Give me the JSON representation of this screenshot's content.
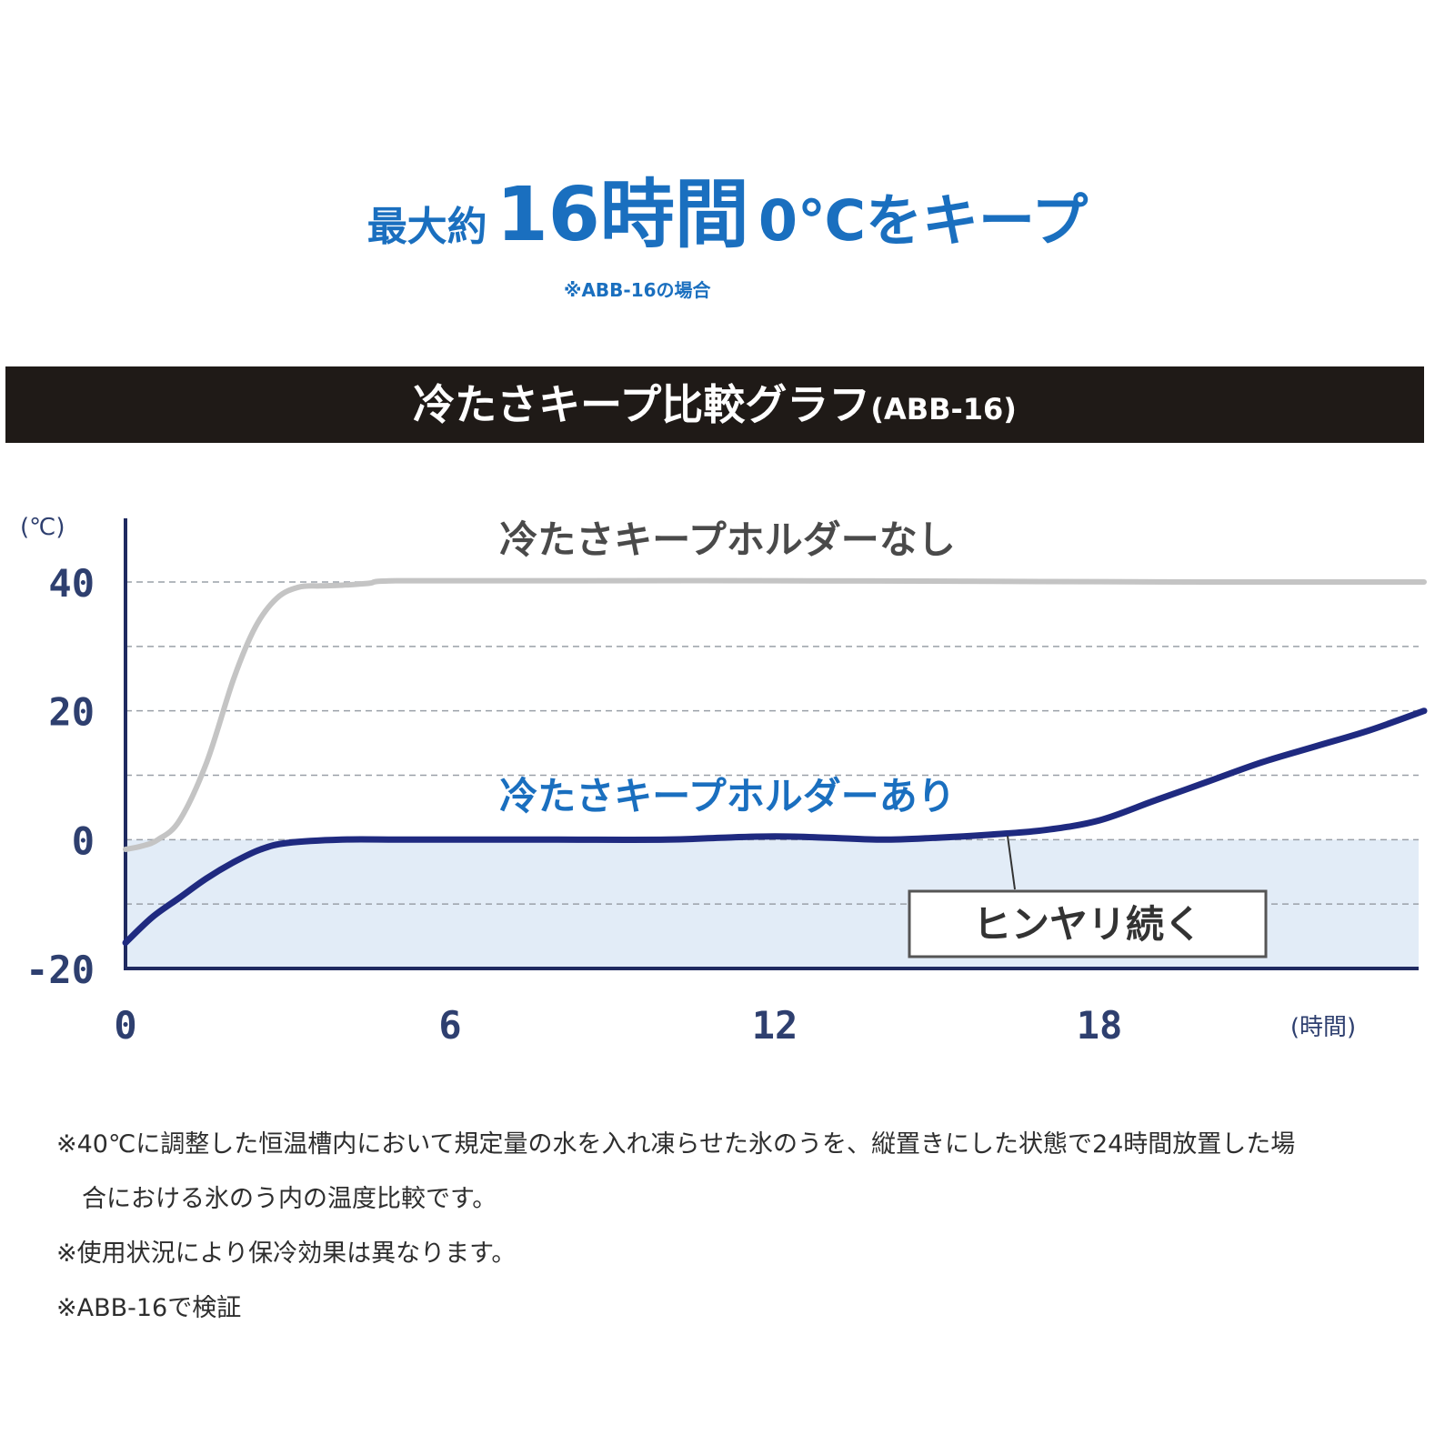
{
  "header": {
    "pre": "最大約",
    "big": "16時間",
    "post": "0℃をキープ",
    "note": "※ABB-16の場合"
  },
  "banner": {
    "main": "冷たさキープ比較グラフ",
    "sub": "(ABB-16)"
  },
  "colors": {
    "accent": "#1a6fbf",
    "banner_bg": "#1f1a17",
    "with_holder": "#1f2a80",
    "without_holder": "#c4c4c4",
    "cold_zone": "#e2ecf7"
  },
  "chart_data": {
    "type": "line",
    "yunit": "(℃)",
    "xunit": "(時間)",
    "xlim": [
      0,
      24
    ],
    "ylim": [
      -20,
      40
    ],
    "xticks": [
      "0",
      "6",
      "12",
      "18"
    ],
    "yticks": [
      "40",
      "20",
      "0",
      "-20"
    ],
    "grid": true,
    "gridlines": [
      40,
      30,
      20,
      10,
      0,
      -10
    ],
    "shaded_region": {
      "from": -20,
      "to": 0,
      "label": "ヒンヤリ続く"
    },
    "series": [
      {
        "name": "冷たさキープホルダーなし",
        "x": [
          0,
          0.3,
          0.6,
          1.0,
          1.5,
          2.0,
          2.4,
          2.8,
          3.2,
          3.6,
          4.0,
          4.5,
          5.0,
          8,
          12,
          16,
          20,
          24
        ],
        "y": [
          -1.5,
          -1,
          0,
          3,
          12,
          25,
          33,
          37.5,
          39.2,
          39.4,
          39.5,
          39.8,
          40.2,
          40.2,
          40.2,
          40.1,
          40.0,
          40.0
        ]
      },
      {
        "name": "冷たさキープホルダーあり",
        "x": [
          0,
          0.5,
          1.0,
          1.5,
          2.0,
          2.5,
          3.0,
          4.0,
          5.0,
          6,
          8,
          10,
          11,
          12,
          13,
          14,
          15,
          16,
          17,
          18,
          19,
          20,
          21,
          22,
          23,
          24
        ],
        "y": [
          -16,
          -12,
          -9,
          -6,
          -3.5,
          -1.5,
          -0.5,
          0,
          0,
          0,
          0,
          0,
          0.3,
          0.5,
          0.3,
          0,
          0.3,
          0.8,
          1.5,
          3,
          6,
          9,
          12,
          14.5,
          17,
          20
        ]
      }
    ]
  },
  "notes": [
    "※40℃に調整した恒温槽内において規定量の水を入れ凍らせた氷のうを、縦置きにした状態で24時間放置した場",
    "合における氷のう内の温度比較です。",
    "※使用状況により保冷効果は異なります。",
    "※ABB-16で検証"
  ]
}
